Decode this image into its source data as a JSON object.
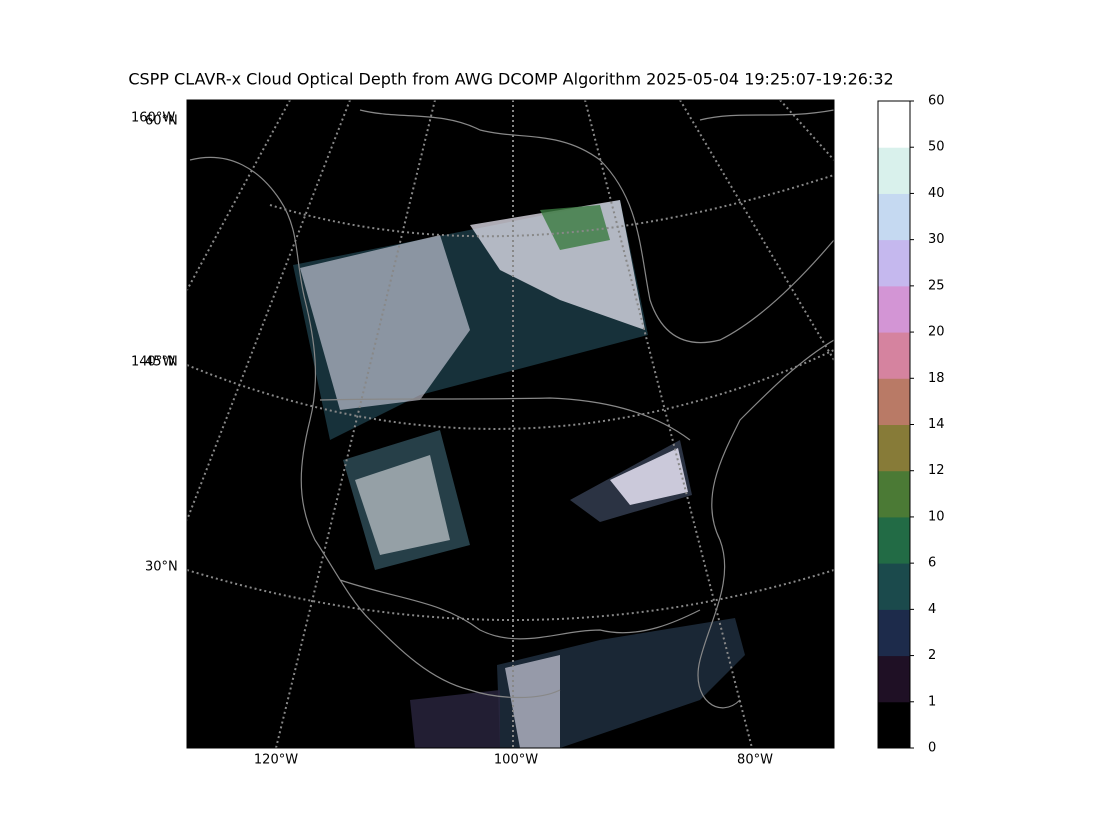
{
  "title": "CSPP CLAVR-x Cloud Optical Depth from AWG DCOMP Algorithm 2025-05-04 19:25:07-19:26:32",
  "map": {
    "left_labels": [
      "160°W",
      "60°N",
      "140°W",
      "45°N",
      "30°N"
    ],
    "bottom_labels": [
      "120°W",
      "100°W",
      "80°W"
    ]
  },
  "colorbar": {
    "ticks": [
      0,
      1,
      2,
      4,
      6,
      10,
      12,
      14,
      18,
      20,
      25,
      30,
      40,
      50,
      60
    ],
    "colors": [
      "#000000",
      "#1f1025",
      "#1d2b4b",
      "#1b4a4c",
      "#226b45",
      "#4b7a35",
      "#877b38",
      "#b97a66",
      "#d5839f",
      "#d395d5",
      "#c5b8ee",
      "#c5d9f1",
      "#d9f1ec",
      "#ffffff"
    ]
  }
}
